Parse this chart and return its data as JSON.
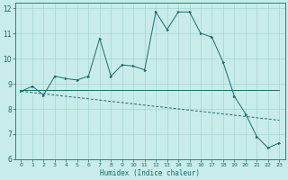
{
  "xlabel": "Humidex (Indice chaleur)",
  "xlim": [
    -0.5,
    23.5
  ],
  "ylim": [
    6,
    12.2
  ],
  "yticks": [
    6,
    7,
    8,
    9,
    10,
    11,
    12
  ],
  "xticks": [
    0,
    1,
    2,
    3,
    4,
    5,
    6,
    7,
    8,
    9,
    10,
    11,
    12,
    13,
    14,
    15,
    16,
    17,
    18,
    19,
    20,
    21,
    22,
    23
  ],
  "bg_color": "#c8ece9",
  "grid_color": "#9ecece",
  "line_color": "#1a6b6b",
  "line1_x": [
    0,
    1,
    2,
    3,
    4,
    5,
    6,
    7,
    8,
    9,
    10,
    11,
    12,
    13,
    14,
    15,
    16,
    17,
    18,
    19,
    20,
    21,
    22,
    23
  ],
  "line1_y": [
    8.7,
    8.9,
    8.55,
    9.3,
    9.2,
    9.15,
    9.3,
    10.8,
    9.3,
    9.75,
    9.7,
    9.55,
    11.85,
    11.15,
    11.85,
    11.85,
    11.0,
    10.85,
    9.85,
    8.5,
    7.8,
    6.9,
    6.45,
    6.65
  ],
  "line2_x": [
    0,
    1,
    2,
    3,
    4,
    5,
    6,
    7,
    8,
    9,
    10,
    11,
    12,
    13,
    14,
    15,
    16,
    17,
    18,
    19,
    20,
    21,
    22,
    23
  ],
  "line2_y": [
    8.75,
    8.75,
    8.75,
    8.75,
    8.75,
    8.75,
    8.75,
    8.75,
    8.75,
    8.75,
    8.75,
    8.75,
    8.75,
    8.75,
    8.75,
    8.75,
    8.75,
    8.75,
    8.75,
    8.75,
    8.75,
    8.75,
    8.75,
    8.75
  ],
  "line3_x": [
    0,
    1,
    2,
    3,
    4,
    5,
    6,
    7,
    8,
    9,
    10,
    11,
    12,
    13,
    14,
    15,
    16,
    17,
    18,
    19,
    20,
    21,
    22,
    23
  ],
  "line3_y": [
    8.7,
    8.65,
    8.6,
    8.55,
    8.5,
    8.45,
    8.4,
    8.35,
    8.3,
    8.25,
    8.2,
    8.15,
    8.1,
    8.05,
    8.0,
    7.95,
    7.9,
    7.85,
    7.8,
    7.75,
    7.7,
    7.65,
    7.6,
    7.55
  ]
}
